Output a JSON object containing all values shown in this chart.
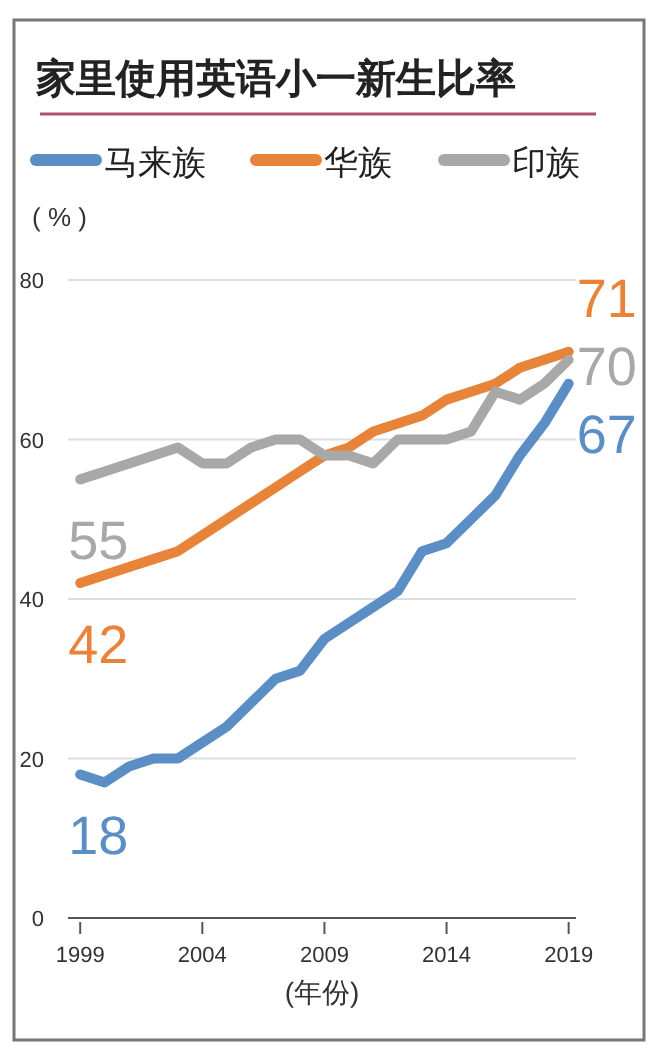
{
  "chart_data": {
    "type": "line",
    "title": "家里使用英语小一新生比率",
    "ylabel": "( % )",
    "xlabel": "(年份)",
    "x": [
      1999,
      2000,
      2001,
      2002,
      2003,
      2004,
      2005,
      2006,
      2007,
      2008,
      2009,
      2010,
      2011,
      2012,
      2013,
      2014,
      2015,
      2016,
      2017,
      2018,
      2019
    ],
    "xlim": [
      1998.5,
      2019.3
    ],
    "xticks": [
      1999,
      2004,
      2009,
      2014,
      2019
    ],
    "ylim": [
      0,
      80
    ],
    "yticks": [
      0,
      20,
      40,
      60,
      80
    ],
    "grid": "y",
    "legend": "top",
    "series": [
      {
        "name": "马来族",
        "color": "#5b8ec4",
        "values": [
          18,
          17,
          19,
          20,
          20,
          22,
          24,
          27,
          30,
          31,
          35,
          37,
          39,
          41,
          46,
          47,
          50,
          53,
          58,
          62,
          67
        ],
        "value_labels": [
          "18",
          null,
          null,
          null,
          null,
          null,
          null,
          null,
          null,
          null,
          null,
          null,
          null,
          null,
          null,
          null,
          null,
          null,
          null,
          null,
          "67"
        ]
      },
      {
        "name": "华族",
        "color": "#e8833a",
        "values": [
          42,
          43,
          44,
          45,
          46,
          48,
          50,
          52,
          54,
          56,
          58,
          59,
          61,
          62,
          63,
          65,
          66,
          67,
          69,
          70,
          71
        ],
        "value_labels": [
          "42",
          null,
          null,
          null,
          null,
          null,
          null,
          null,
          null,
          null,
          null,
          null,
          null,
          null,
          null,
          null,
          null,
          null,
          null,
          null,
          "71"
        ]
      },
      {
        "name": "印族",
        "color": "#a8a8a8",
        "values": [
          55,
          56,
          57,
          58,
          59,
          57,
          57,
          59,
          60,
          60,
          58,
          58,
          57,
          60,
          60,
          60,
          61,
          66,
          65,
          67,
          70
        ],
        "value_labels": [
          "55",
          null,
          null,
          null,
          null,
          null,
          null,
          null,
          null,
          null,
          null,
          null,
          null,
          null,
          null,
          null,
          null,
          null,
          null,
          null,
          "70"
        ]
      }
    ]
  }
}
